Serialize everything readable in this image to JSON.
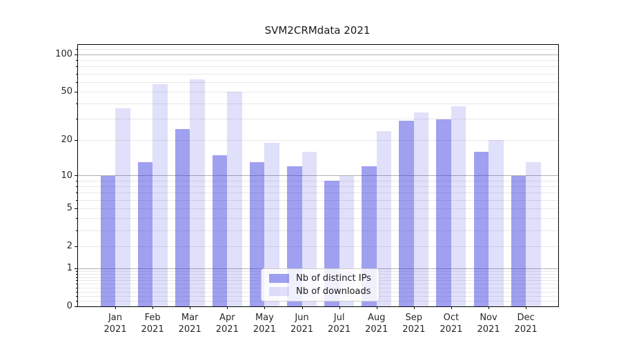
{
  "title": "SVM2CRMdata 2021",
  "chart_data": {
    "type": "bar",
    "title": "SVM2CRMdata 2021",
    "categories": [
      "Jan 2021",
      "Feb 2021",
      "Mar 2021",
      "Apr 2021",
      "May 2021",
      "Jun 2021",
      "Jul 2021",
      "Aug 2021",
      "Sep 2021",
      "Oct 2021",
      "Nov 2021",
      "Dec 2021"
    ],
    "series": [
      {
        "name": "Nb of distinct IPs",
        "values": [
          10,
          13,
          25,
          15,
          13,
          12,
          9,
          12,
          29,
          30,
          16,
          10
        ],
        "color": "rgba(44,44,222,0.45)"
      },
      {
        "name": "Nb of downloads",
        "values": [
          37,
          58,
          63,
          50,
          19,
          16,
          10,
          24,
          34,
          38,
          20,
          13
        ],
        "color": "rgba(44,44,222,0.15)"
      }
    ],
    "yscale": "log10(1+v)",
    "ylim": [
      0,
      120
    ],
    "yticks": [
      100,
      50,
      20,
      10,
      5,
      2,
      1,
      0
    ],
    "ytick_labels": [
      "100",
      "50",
      "20",
      "10",
      "5",
      "2",
      "1",
      "0"
    ],
    "gridlines": {
      "major": [
        1,
        10,
        100
      ],
      "minor": [
        0.1,
        0.2,
        0.3,
        0.4,
        0.5,
        0.6,
        0.7,
        0.8,
        0.9,
        2,
        3,
        4,
        5,
        6,
        7,
        8,
        9,
        20,
        30,
        40,
        50,
        60,
        70,
        80,
        90,
        110
      ]
    },
    "grid": true,
    "legend": {
      "entries": [
        "Nb of distinct IPs",
        "Nb of downloads"
      ],
      "position": "lower center"
    }
  },
  "colors": {
    "bar_distinct_ips": "rgba(44,44,222,0.45)",
    "bar_downloads": "rgba(44,44,222,0.15)",
    "grid_major": "#b0b0b0",
    "grid_minor": "#e8e8e8",
    "axis_frame": "#000000",
    "tick_text": "#262626",
    "legend_border": "#cccccc",
    "legend_background": "rgba(255,255,255,0.85)"
  }
}
